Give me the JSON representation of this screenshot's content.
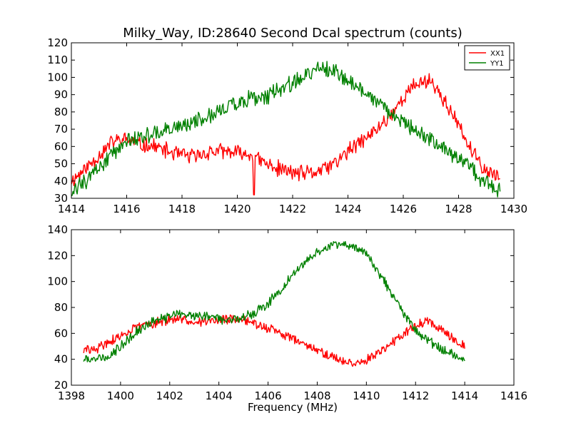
{
  "title": "Milky_Way, ID:28640 Second Dcal spectrum (counts)",
  "xlabel": "Frequency (MHz)",
  "colors": {
    "XX1": "#ff0000",
    "YY1": "#008000",
    "axes": "#000000",
    "background": "#ffffff"
  },
  "chart_data": [
    {
      "type": "line",
      "title": "Milky_Way, ID:28640 Second Dcal spectrum (counts)",
      "xlabel": "",
      "ylabel": "",
      "xlim": [
        1414,
        1430
      ],
      "ylim": [
        30,
        120
      ],
      "xticks": [
        1414,
        1416,
        1418,
        1420,
        1422,
        1424,
        1426,
        1428,
        1430
      ],
      "yticks": [
        30,
        40,
        50,
        60,
        70,
        80,
        90,
        100,
        110,
        120
      ],
      "grid": false,
      "legend": {
        "position": "top-right",
        "entries": [
          "XX1",
          "YY1"
        ]
      },
      "series": [
        {
          "name": "XX1",
          "color": "#ff0000",
          "x": [
            1414.0,
            1414.5,
            1415.0,
            1415.5,
            1416.0,
            1416.5,
            1417.0,
            1417.5,
            1418.0,
            1418.5,
            1419.0,
            1419.5,
            1420.0,
            1420.5,
            1421.0,
            1421.5,
            1422.0,
            1422.5,
            1423.0,
            1423.5,
            1424.0,
            1424.5,
            1425.0,
            1425.5,
            1426.0,
            1426.5,
            1427.0,
            1427.5,
            1428.0,
            1428.5,
            1429.0,
            1429.5
          ],
          "values": [
            40,
            47,
            55,
            63,
            64,
            61,
            60,
            57,
            55,
            54,
            57,
            57,
            56,
            55,
            50,
            47,
            45,
            44,
            46,
            50,
            57,
            63,
            69,
            78,
            88,
            97,
            98,
            86,
            72,
            56,
            46,
            42
          ]
        },
        {
          "name": "YY1",
          "color": "#008000",
          "x": [
            1414.0,
            1414.5,
            1415.0,
            1415.5,
            1416.0,
            1416.5,
            1417.0,
            1417.5,
            1418.0,
            1418.5,
            1419.0,
            1419.5,
            1420.0,
            1420.5,
            1421.0,
            1421.5,
            1422.0,
            1422.5,
            1423.0,
            1423.5,
            1424.0,
            1424.5,
            1425.0,
            1425.5,
            1426.0,
            1426.5,
            1427.0,
            1427.5,
            1428.0,
            1428.5,
            1429.0,
            1429.5
          ],
          "values": [
            34,
            40,
            48,
            56,
            63,
            66,
            68,
            69,
            71,
            74,
            78,
            82,
            85,
            88,
            89,
            92,
            97,
            102,
            105,
            104,
            98,
            92,
            86,
            79,
            73,
            69,
            64,
            58,
            53,
            46,
            38,
            35
          ]
        }
      ]
    },
    {
      "type": "line",
      "title": "",
      "xlabel": "Frequency (MHz)",
      "ylabel": "",
      "xlim": [
        1398,
        1416
      ],
      "ylim": [
        20,
        140
      ],
      "xticks": [
        1398,
        1400,
        1402,
        1404,
        1406,
        1408,
        1410,
        1412,
        1414,
        1416
      ],
      "yticks": [
        20,
        40,
        60,
        80,
        100,
        120,
        140
      ],
      "grid": false,
      "series": [
        {
          "name": "XX1",
          "color": "#ff0000",
          "x": [
            1398.5,
            1399.0,
            1399.5,
            1400.0,
            1400.5,
            1401.0,
            1401.5,
            1402.0,
            1402.5,
            1403.0,
            1403.5,
            1404.0,
            1404.5,
            1405.0,
            1405.5,
            1406.0,
            1406.5,
            1407.0,
            1407.5,
            1408.0,
            1408.5,
            1409.0,
            1409.5,
            1410.0,
            1410.5,
            1411.0,
            1411.5,
            1412.0,
            1412.5,
            1413.0,
            1413.5,
            1414.0
          ],
          "values": [
            47,
            48,
            53,
            58,
            63,
            67,
            69,
            70,
            70,
            70,
            69,
            70,
            71,
            70,
            67,
            64,
            60,
            56,
            52,
            47,
            42,
            39,
            37,
            39,
            44,
            53,
            60,
            66,
            70,
            64,
            57,
            50
          ]
        },
        {
          "name": "YY1",
          "color": "#008000",
          "x": [
            1398.5,
            1399.0,
            1399.5,
            1400.0,
            1400.5,
            1401.0,
            1401.5,
            1402.0,
            1402.5,
            1403.0,
            1403.5,
            1404.0,
            1404.5,
            1405.0,
            1405.5,
            1406.0,
            1406.5,
            1407.0,
            1407.5,
            1408.0,
            1408.5,
            1409.0,
            1409.5,
            1410.0,
            1410.5,
            1411.0,
            1411.5,
            1412.0,
            1412.5,
            1413.0,
            1413.5,
            1414.0
          ],
          "values": [
            40,
            41,
            43,
            50,
            59,
            66,
            70,
            73,
            75,
            74,
            73,
            71,
            71,
            72,
            76,
            83,
            93,
            105,
            115,
            122,
            127,
            130,
            128,
            120,
            107,
            92,
            76,
            62,
            55,
            48,
            43,
            41
          ]
        }
      ]
    }
  ]
}
